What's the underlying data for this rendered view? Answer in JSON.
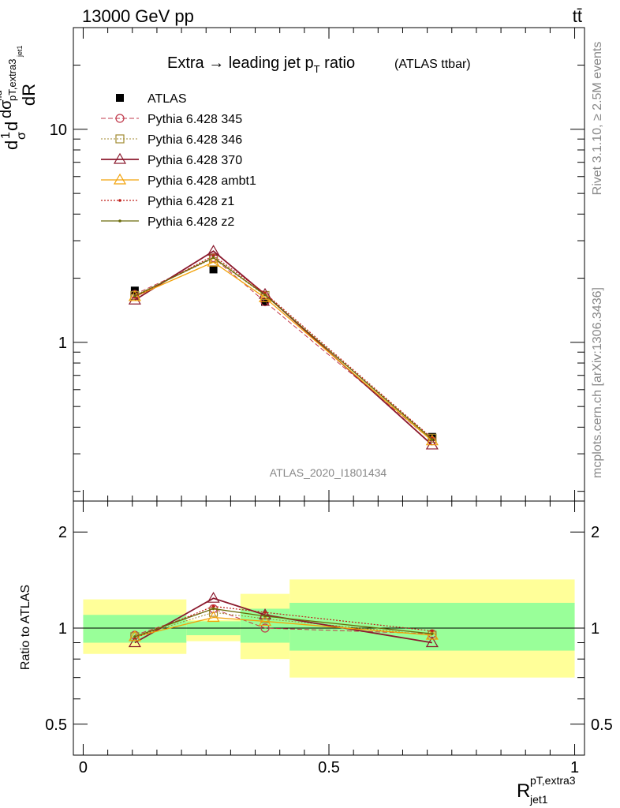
{
  "header": {
    "energy_label": "13000 GeV pp",
    "process_label": "tt̄"
  },
  "title": {
    "main": "Extra → leading jet p",
    "main_sub": "T",
    "main_tail": " ratio",
    "paren": "(ATLAS ttbar)"
  },
  "side": {
    "rivet": "Rivet 3.1.10, ≥ 2.5M events",
    "mcplots": "mcplots.cern.ch [arXiv:1306.3436]"
  },
  "analysis_id": "ATLAS_2020_I1801434",
  "ylabel_main": {
    "p1": "d",
    "one": "1",
    "sigma": "σ",
    "p2": "d",
    "dsig": "dσ",
    "fid": "fid",
    "sub": "pT,extra3",
    "subsub": "jet1",
    "dR": "dR"
  },
  "ylabel_ratio": "Ratio to ATLAS",
  "xlabel": {
    "base": "R",
    "sup": "pT,extra3",
    "sub": "jet1"
  },
  "colors": {
    "atlas": "#000000",
    "p345": "#c0394b",
    "p346": "#a08a30",
    "p370": "#8b1a2e",
    "ambt1": "#f2a20a",
    "z1": "#c0201a",
    "z2": "#6b6b0a",
    "band_inner": "#99ff99",
    "band_outer": "#ffff99"
  },
  "chart_data": [
    {
      "type": "line",
      "panel": "main",
      "yscale": "log",
      "ylim": [
        0.18,
        30
      ],
      "xlim": [
        -0.02,
        1.02
      ],
      "yticks": [
        {
          "v": 1,
          "label": "1"
        },
        {
          "v": 10,
          "label": "10"
        }
      ],
      "x": [
        0.105,
        0.265,
        0.37,
        0.71
      ],
      "series": [
        {
          "name": "ATLAS",
          "key": "atlas",
          "values": [
            1.75,
            2.2,
            1.55,
            0.36
          ]
        },
        {
          "name": "Pythia 6.428 345",
          "key": "p345",
          "values": [
            1.68,
            2.5,
            1.55,
            0.345
          ]
        },
        {
          "name": "Pythia 6.428 346",
          "key": "p346",
          "values": [
            1.66,
            2.48,
            1.66,
            0.355
          ]
        },
        {
          "name": "Pythia 6.428 370",
          "key": "p370",
          "values": [
            1.58,
            2.68,
            1.68,
            0.33
          ]
        },
        {
          "name": "Pythia 6.428 ambt1",
          "key": "ambt1",
          "values": [
            1.64,
            2.38,
            1.62,
            0.345
          ]
        },
        {
          "name": "Pythia 6.428 z1",
          "key": "z1",
          "values": [
            1.63,
            2.55,
            1.7,
            0.355
          ]
        },
        {
          "name": "Pythia 6.428 z2",
          "key": "z2",
          "values": [
            1.65,
            2.5,
            1.67,
            0.35
          ]
        }
      ]
    },
    {
      "type": "line",
      "panel": "ratio",
      "yscale": "log",
      "ylim": [
        0.4,
        2.5
      ],
      "xlim": [
        -0.02,
        1.02
      ],
      "yticks": [
        {
          "v": 0.5,
          "label": "0.5"
        },
        {
          "v": 1,
          "label": "1"
        },
        {
          "v": 2,
          "label": "2"
        }
      ],
      "xticks": [
        {
          "v": 0,
          "label": "0"
        },
        {
          "v": 0.5,
          "label": "0.5"
        },
        {
          "v": 1,
          "label": "1"
        }
      ],
      "bins": [
        {
          "lo": 0.0,
          "hi": 0.21,
          "inner": [
            0.9,
            1.1
          ],
          "outer": [
            0.83,
            1.23
          ]
        },
        {
          "lo": 0.21,
          "hi": 0.32,
          "inner": [
            0.95,
            1.05
          ],
          "outer": [
            0.91,
            1.06
          ]
        },
        {
          "lo": 0.32,
          "hi": 0.42,
          "inner": [
            0.9,
            1.15
          ],
          "outer": [
            0.8,
            1.28
          ]
        },
        {
          "lo": 0.42,
          "hi": 1.0,
          "inner": [
            0.85,
            1.2
          ],
          "outer": [
            0.7,
            1.42
          ]
        }
      ],
      "x": [
        0.105,
        0.265,
        0.37,
        0.71
      ],
      "series": [
        {
          "name": "Pythia 6.428 345",
          "key": "p345",
          "values": [
            0.95,
            1.15,
            1.0,
            0.96
          ]
        },
        {
          "name": "Pythia 6.428 346",
          "key": "p346",
          "values": [
            0.94,
            1.12,
            1.07,
            0.95
          ]
        },
        {
          "name": "Pythia 6.428 370",
          "key": "p370",
          "values": [
            0.9,
            1.24,
            1.1,
            0.9
          ]
        },
        {
          "name": "Pythia 6.428 ambt1",
          "key": "ambt1",
          "values": [
            0.94,
            1.08,
            1.05,
            0.95
          ]
        },
        {
          "name": "Pythia 6.428 z1",
          "key": "z1",
          "values": [
            0.93,
            1.17,
            1.12,
            0.98
          ]
        },
        {
          "name": "Pythia 6.428 z2",
          "key": "z2",
          "values": [
            0.94,
            1.15,
            1.09,
            0.96
          ]
        }
      ]
    }
  ]
}
